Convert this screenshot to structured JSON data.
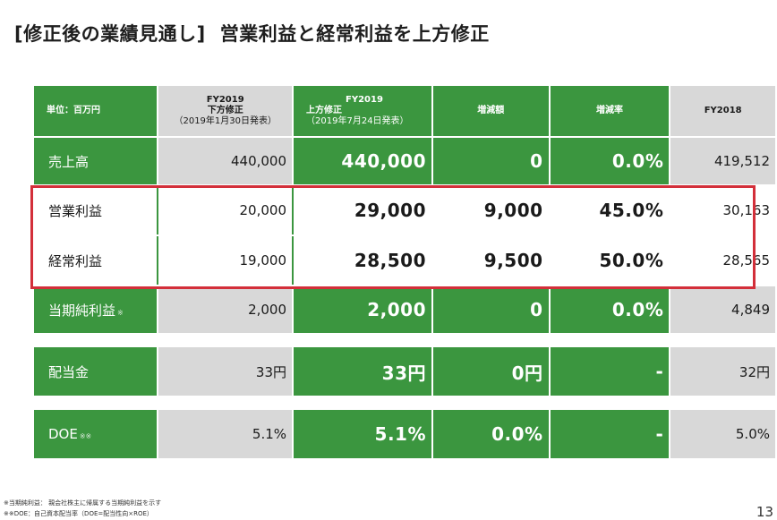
{
  "title": {
    "bracket": "[修正後の業績見通し]",
    "main": "営業利益と経常利益を上方修正"
  },
  "header": {
    "unit": "単位：百万円",
    "col_prev": [
      "FY2019",
      "下方修正",
      "（2019年1月30日発表）"
    ],
    "col_up": [
      "FY2019",
      "上方修正",
      "（2019年7月24日発表）"
    ],
    "col_inc": "増減額",
    "col_rate": "増減率",
    "col_fy18": "FY2018"
  },
  "rows": {
    "sales": {
      "label": "売上高",
      "prev": "440,000",
      "up": "440,000",
      "inc": "0",
      "rate": "0.0%",
      "fy18": "419,512"
    },
    "op": {
      "label": "営業利益",
      "prev": "20,000",
      "up": "29,000",
      "inc": "9,000",
      "rate": "45.0%",
      "fy18": "30,163"
    },
    "ord": {
      "label": "経常利益",
      "prev": "19,000",
      "up": "28,500",
      "inc": "9,500",
      "rate": "50.0%",
      "fy18": "28,565"
    },
    "net": {
      "label": "当期純利益",
      "mark": "※",
      "prev": "2,000",
      "up": "2,000",
      "inc": "0",
      "rate": "0.0%",
      "fy18": "4,849"
    },
    "div": {
      "label": "配当金",
      "prev": "33円",
      "up": "33円",
      "inc": "0円",
      "rate": "-",
      "fy18": "32円"
    },
    "doe": {
      "label": "DOE",
      "mark": "※※",
      "prev": "5.1%",
      "up": "5.1%",
      "inc": "0.0%",
      "rate": "-",
      "fy18": "5.0%"
    }
  },
  "notes": [
    "※当期純利益： 親会社株主に帰属する当期純利益を示す",
    "※※DOE：自己資本配当率（DOE=配当性向×ROE）"
  ],
  "page_number": "13",
  "colors": {
    "green": "#3b963f",
    "gray": "#d8d8d8",
    "highlight": "#d32f3a"
  }
}
